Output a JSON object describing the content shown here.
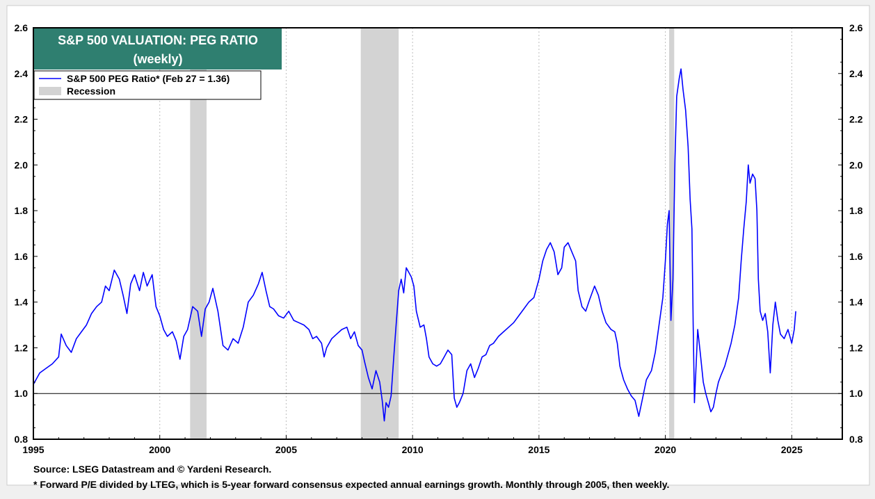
{
  "chart_data": {
    "type": "line",
    "title": "S&P 500 VALUATION: PEG RATIO",
    "subtitle": "(weekly)",
    "legend": {
      "placement": "top-left",
      "entries": [
        {
          "label": "S&P 500 PEG Ratio* (Feb 27 = 1.36)",
          "color": "#0000ff",
          "kind": "line"
        },
        {
          "label": "Recession",
          "color": "#d3d3d3",
          "kind": "band"
        }
      ]
    },
    "xlim": [
      1995,
      2027
    ],
    "ylim": [
      0.8,
      2.6
    ],
    "x_ticks": [
      1995,
      2000,
      2005,
      2010,
      2015,
      2020,
      2025
    ],
    "y_ticks": [
      "0.8",
      "1.0",
      "1.2",
      "1.4",
      "1.6",
      "1.8",
      "2.0",
      "2.2",
      "2.4",
      "2.6"
    ],
    "reference_line": 1.0,
    "grid": "dotted vertical at x ticks",
    "recessions": [
      [
        2001.2,
        2001.85
      ],
      [
        2007.95,
        2009.45
      ],
      [
        2020.15,
        2020.35
      ]
    ],
    "series": [
      {
        "name": "S&P 500 PEG Ratio",
        "color": "#0000ff",
        "points": [
          [
            1995.0,
            1.04
          ],
          [
            1995.25,
            1.09
          ],
          [
            1995.5,
            1.11
          ],
          [
            1995.75,
            1.13
          ],
          [
            1996.0,
            1.16
          ],
          [
            1996.1,
            1.26
          ],
          [
            1996.3,
            1.21
          ],
          [
            1996.5,
            1.18
          ],
          [
            1996.7,
            1.24
          ],
          [
            1996.9,
            1.27
          ],
          [
            1997.1,
            1.3
          ],
          [
            1997.3,
            1.35
          ],
          [
            1997.5,
            1.38
          ],
          [
            1997.7,
            1.4
          ],
          [
            1997.85,
            1.47
          ],
          [
            1998.0,
            1.45
          ],
          [
            1998.2,
            1.54
          ],
          [
            1998.4,
            1.5
          ],
          [
            1998.55,
            1.43
          ],
          [
            1998.7,
            1.35
          ],
          [
            1998.85,
            1.48
          ],
          [
            1999.0,
            1.52
          ],
          [
            1999.2,
            1.45
          ],
          [
            1999.35,
            1.53
          ],
          [
            1999.5,
            1.47
          ],
          [
            1999.7,
            1.52
          ],
          [
            1999.85,
            1.38
          ],
          [
            2000.0,
            1.34
          ],
          [
            2000.15,
            1.28
          ],
          [
            2000.3,
            1.25
          ],
          [
            2000.5,
            1.27
          ],
          [
            2000.65,
            1.23
          ],
          [
            2000.8,
            1.15
          ],
          [
            2000.95,
            1.25
          ],
          [
            2001.1,
            1.28
          ],
          [
            2001.3,
            1.38
          ],
          [
            2001.5,
            1.36
          ],
          [
            2001.65,
            1.25
          ],
          [
            2001.8,
            1.37
          ],
          [
            2001.95,
            1.4
          ],
          [
            2002.1,
            1.46
          ],
          [
            2002.3,
            1.36
          ],
          [
            2002.5,
            1.21
          ],
          [
            2002.7,
            1.19
          ],
          [
            2002.9,
            1.24
          ],
          [
            2003.1,
            1.22
          ],
          [
            2003.3,
            1.29
          ],
          [
            2003.5,
            1.4
          ],
          [
            2003.7,
            1.43
          ],
          [
            2003.9,
            1.48
          ],
          [
            2004.05,
            1.53
          ],
          [
            2004.2,
            1.45
          ],
          [
            2004.35,
            1.38
          ],
          [
            2004.5,
            1.37
          ],
          [
            2004.7,
            1.34
          ],
          [
            2004.9,
            1.33
          ],
          [
            2005.1,
            1.36
          ],
          [
            2005.3,
            1.32
          ],
          [
            2005.5,
            1.31
          ],
          [
            2005.7,
            1.3
          ],
          [
            2005.9,
            1.28
          ],
          [
            2006.05,
            1.24
          ],
          [
            2006.2,
            1.25
          ],
          [
            2006.4,
            1.22
          ],
          [
            2006.5,
            1.16
          ],
          [
            2006.6,
            1.2
          ],
          [
            2006.8,
            1.24
          ],
          [
            2007.0,
            1.26
          ],
          [
            2007.2,
            1.28
          ],
          [
            2007.4,
            1.29
          ],
          [
            2007.55,
            1.24
          ],
          [
            2007.7,
            1.27
          ],
          [
            2007.85,
            1.21
          ],
          [
            2008.0,
            1.19
          ],
          [
            2008.1,
            1.14
          ],
          [
            2008.25,
            1.07
          ],
          [
            2008.4,
            1.02
          ],
          [
            2008.55,
            1.1
          ],
          [
            2008.7,
            1.05
          ],
          [
            2008.8,
            0.97
          ],
          [
            2008.88,
            0.88
          ],
          [
            2008.95,
            0.96
          ],
          [
            2009.05,
            0.94
          ],
          [
            2009.15,
            0.99
          ],
          [
            2009.25,
            1.15
          ],
          [
            2009.35,
            1.3
          ],
          [
            2009.45,
            1.45
          ],
          [
            2009.55,
            1.5
          ],
          [
            2009.65,
            1.44
          ],
          [
            2009.75,
            1.55
          ],
          [
            2009.85,
            1.53
          ],
          [
            2009.95,
            1.51
          ],
          [
            2010.05,
            1.47
          ],
          [
            2010.15,
            1.36
          ],
          [
            2010.3,
            1.29
          ],
          [
            2010.45,
            1.3
          ],
          [
            2010.55,
            1.24
          ],
          [
            2010.65,
            1.16
          ],
          [
            2010.8,
            1.13
          ],
          [
            2010.95,
            1.12
          ],
          [
            2011.1,
            1.13
          ],
          [
            2011.25,
            1.16
          ],
          [
            2011.4,
            1.19
          ],
          [
            2011.55,
            1.17
          ],
          [
            2011.65,
            0.98
          ],
          [
            2011.75,
            0.94
          ],
          [
            2011.85,
            0.96
          ],
          [
            2012.0,
            1.0
          ],
          [
            2012.15,
            1.1
          ],
          [
            2012.3,
            1.13
          ],
          [
            2012.45,
            1.07
          ],
          [
            2012.6,
            1.11
          ],
          [
            2012.75,
            1.16
          ],
          [
            2012.9,
            1.17
          ],
          [
            2013.05,
            1.21
          ],
          [
            2013.2,
            1.22
          ],
          [
            2013.4,
            1.25
          ],
          [
            2013.6,
            1.27
          ],
          [
            2013.8,
            1.29
          ],
          [
            2014.0,
            1.31
          ],
          [
            2014.2,
            1.34
          ],
          [
            2014.4,
            1.37
          ],
          [
            2014.6,
            1.4
          ],
          [
            2014.8,
            1.42
          ],
          [
            2015.0,
            1.5
          ],
          [
            2015.15,
            1.58
          ],
          [
            2015.3,
            1.63
          ],
          [
            2015.45,
            1.66
          ],
          [
            2015.6,
            1.62
          ],
          [
            2015.75,
            1.52
          ],
          [
            2015.9,
            1.55
          ],
          [
            2016.0,
            1.64
          ],
          [
            2016.15,
            1.66
          ],
          [
            2016.3,
            1.62
          ],
          [
            2016.45,
            1.58
          ],
          [
            2016.55,
            1.45
          ],
          [
            2016.7,
            1.38
          ],
          [
            2016.85,
            1.36
          ],
          [
            2017.0,
            1.41
          ],
          [
            2017.2,
            1.47
          ],
          [
            2017.35,
            1.43
          ],
          [
            2017.5,
            1.36
          ],
          [
            2017.65,
            1.31
          ],
          [
            2017.85,
            1.28
          ],
          [
            2018.0,
            1.27
          ],
          [
            2018.1,
            1.22
          ],
          [
            2018.2,
            1.12
          ],
          [
            2018.35,
            1.06
          ],
          [
            2018.5,
            1.02
          ],
          [
            2018.65,
            0.99
          ],
          [
            2018.8,
            0.97
          ],
          [
            2018.95,
            0.9
          ],
          [
            2019.1,
            0.98
          ],
          [
            2019.25,
            1.06
          ],
          [
            2019.45,
            1.1
          ],
          [
            2019.6,
            1.18
          ],
          [
            2019.75,
            1.3
          ],
          [
            2019.9,
            1.42
          ],
          [
            2020.0,
            1.58
          ],
          [
            2020.08,
            1.74
          ],
          [
            2020.15,
            1.8
          ],
          [
            2020.22,
            1.32
          ],
          [
            2020.3,
            1.5
          ],
          [
            2020.38,
            2.02
          ],
          [
            2020.45,
            2.3
          ],
          [
            2020.55,
            2.38
          ],
          [
            2020.62,
            2.42
          ],
          [
            2020.7,
            2.33
          ],
          [
            2020.8,
            2.24
          ],
          [
            2020.9,
            2.08
          ],
          [
            2020.98,
            1.85
          ],
          [
            2021.05,
            1.72
          ],
          [
            2021.1,
            1.3
          ],
          [
            2021.15,
            0.96
          ],
          [
            2021.2,
            1.08
          ],
          [
            2021.28,
            1.28
          ],
          [
            2021.38,
            1.18
          ],
          [
            2021.5,
            1.05
          ],
          [
            2021.6,
            1.0
          ],
          [
            2021.7,
            0.96
          ],
          [
            2021.8,
            0.92
          ],
          [
            2021.9,
            0.94
          ],
          [
            2022.0,
            1.0
          ],
          [
            2022.1,
            1.05
          ],
          [
            2022.2,
            1.08
          ],
          [
            2022.35,
            1.12
          ],
          [
            2022.5,
            1.18
          ],
          [
            2022.6,
            1.22
          ],
          [
            2022.75,
            1.3
          ],
          [
            2022.9,
            1.42
          ],
          [
            2023.0,
            1.58
          ],
          [
            2023.1,
            1.72
          ],
          [
            2023.2,
            1.84
          ],
          [
            2023.28,
            2.0
          ],
          [
            2023.35,
            1.92
          ],
          [
            2023.45,
            1.96
          ],
          [
            2023.55,
            1.94
          ],
          [
            2023.62,
            1.8
          ],
          [
            2023.68,
            1.5
          ],
          [
            2023.75,
            1.36
          ],
          [
            2023.85,
            1.32
          ],
          [
            2023.95,
            1.35
          ],
          [
            2024.05,
            1.27
          ],
          [
            2024.15,
            1.09
          ],
          [
            2024.25,
            1.3
          ],
          [
            2024.35,
            1.4
          ],
          [
            2024.45,
            1.32
          ],
          [
            2024.55,
            1.26
          ],
          [
            2024.7,
            1.24
          ],
          [
            2024.85,
            1.28
          ],
          [
            2025.0,
            1.22
          ],
          [
            2025.1,
            1.28
          ],
          [
            2025.16,
            1.36
          ]
        ]
      }
    ]
  },
  "footer": {
    "source": "Source: LSEG Datastream and © Yardeni Research.",
    "note": "* Forward P/E divided by LTEG, which is 5-year forward consensus expected annual earnings growth. Monthly through 2005, then weekly."
  }
}
